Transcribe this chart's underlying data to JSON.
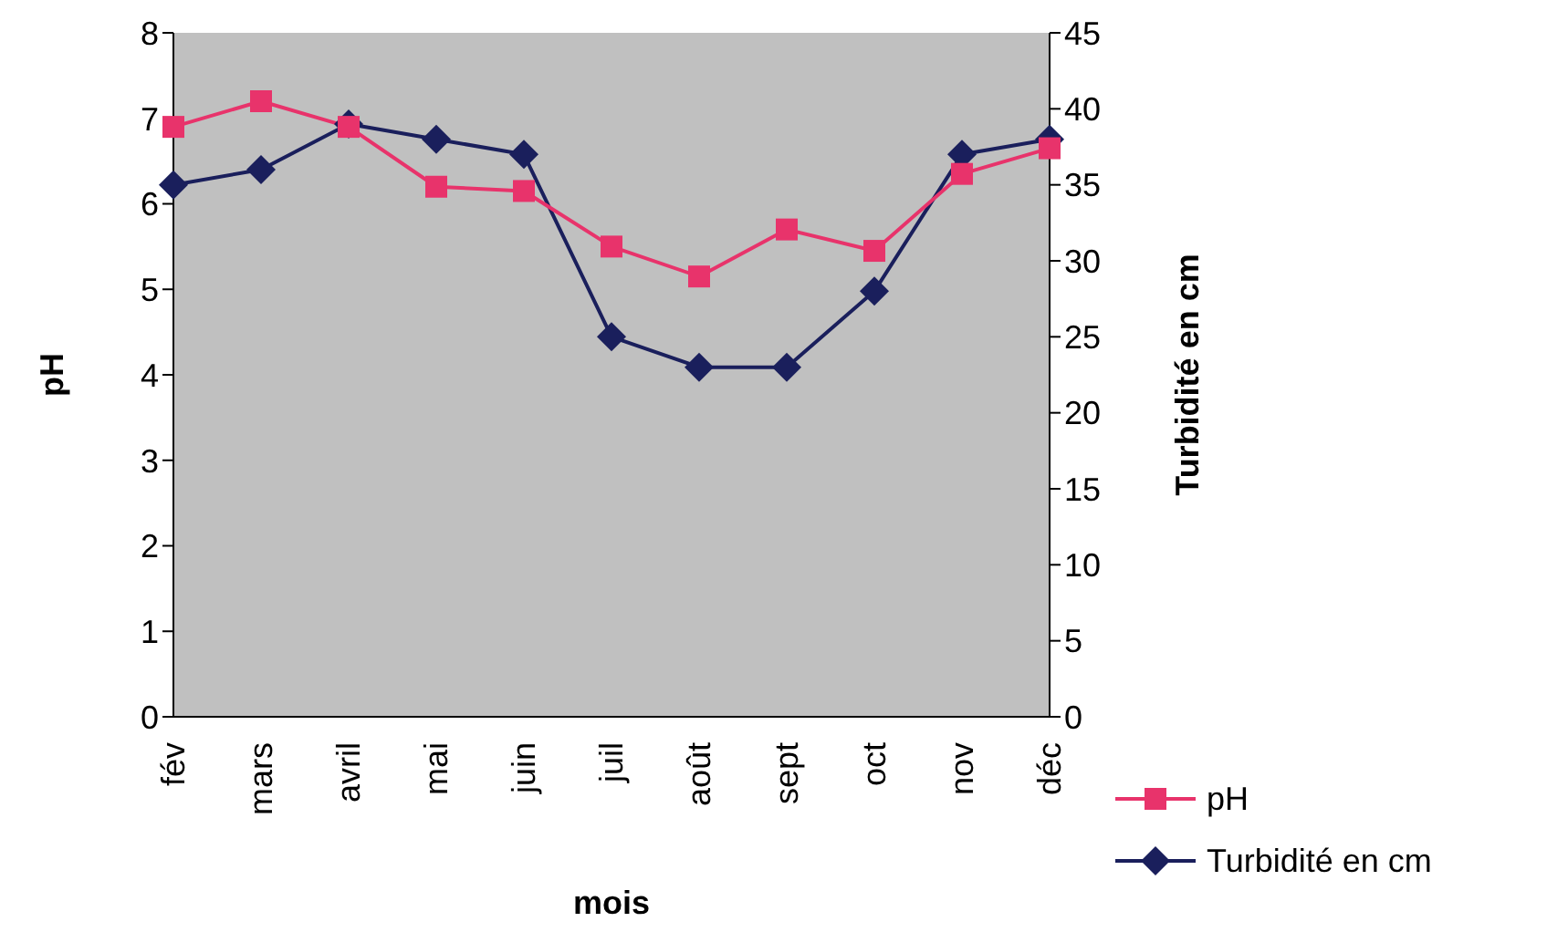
{
  "chart_data": {
    "type": "line",
    "xlabel": "mois",
    "ylabel": "pH",
    "y2label": "Turbidité en cm",
    "categories": [
      "fév",
      "mars",
      "avril",
      "mai",
      "juin",
      "juil",
      "août",
      "sept",
      "oct",
      "nov",
      "déc"
    ],
    "series": [
      {
        "name": "pH",
        "color": "#e8336b",
        "marker": "square",
        "values": [
          6.9,
          7.2,
          6.9,
          6.2,
          6.15,
          5.5,
          5.15,
          5.7,
          5.45,
          6.35,
          6.65
        ]
      },
      {
        "name": "Turbidité en cm",
        "color": "#1a1f5c",
        "marker": "diamond",
        "axis": "y2",
        "values": [
          35,
          36,
          39,
          38,
          37,
          25,
          23,
          23,
          28,
          37,
          38
        ]
      }
    ],
    "ylim": [
      0,
      8
    ],
    "yticks": [
      0,
      1,
      2,
      3,
      4,
      5,
      6,
      7,
      8
    ],
    "y2lim": [
      0,
      45
    ],
    "y2ticks": [
      0,
      5,
      10,
      15,
      20,
      25,
      30,
      35,
      40,
      45
    ],
    "grid": false,
    "legend": "bottom right"
  }
}
